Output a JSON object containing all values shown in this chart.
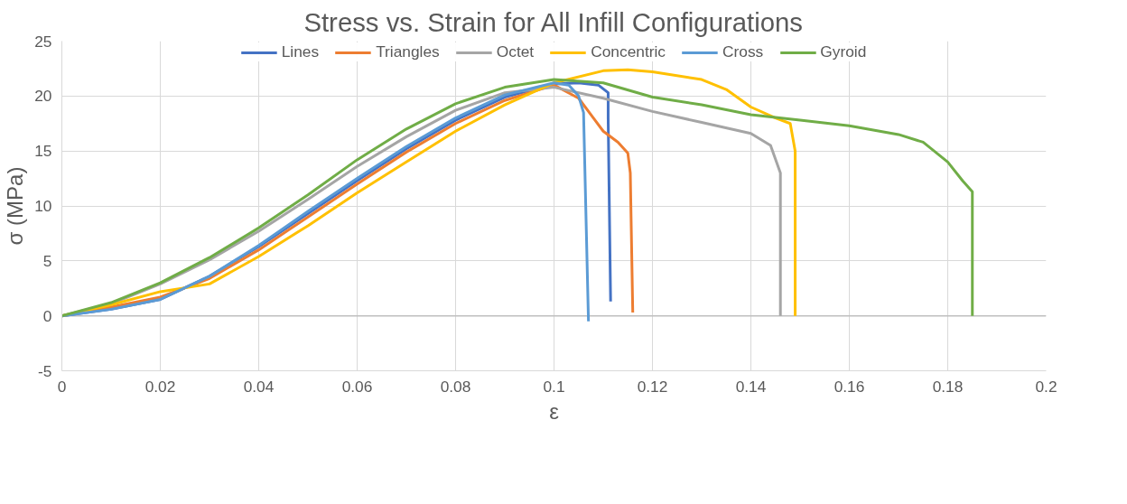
{
  "chart_data": {
    "type": "line",
    "title": "Stress vs. Strain for All Infill Configurations",
    "xlabel": "ε",
    "ylabel": "σ (MPa)",
    "xlim": [
      0,
      0.2
    ],
    "ylim": [
      -5,
      25
    ],
    "xticks": [
      {
        "value": 0,
        "label": "0"
      },
      0.02,
      0.04,
      0.06,
      0.08,
      0.1,
      0.12,
      0.14,
      0.16,
      0.18,
      0.2
    ],
    "yticks": [
      -5,
      0,
      5,
      10,
      15,
      20,
      25
    ],
    "grid": true,
    "legend": "top",
    "marker": "none",
    "line_style": "solid",
    "series": [
      {
        "name": "Lines",
        "color": "#4472c4",
        "x": [
          0,
          0.01,
          0.02,
          0.03,
          0.04,
          0.05,
          0.06,
          0.07,
          0.08,
          0.09,
          0.1,
          0.105,
          0.109,
          0.111,
          0.111,
          0.1115
        ],
        "values": [
          0,
          0.6,
          1.5,
          3.6,
          6.3,
          9.3,
          12.3,
          15.2,
          17.8,
          19.9,
          21.1,
          21.2,
          21.0,
          20.3,
          18.0,
          1.3
        ]
      },
      {
        "name": "Triangles",
        "color": "#ed7d31",
        "x": [
          0,
          0.01,
          0.02,
          0.03,
          0.04,
          0.05,
          0.06,
          0.07,
          0.08,
          0.09,
          0.1,
          0.105,
          0.108,
          0.11,
          0.113,
          0.115,
          0.1155,
          0.116
        ],
        "values": [
          0,
          0.8,
          1.7,
          3.4,
          6.0,
          9.0,
          12.0,
          14.9,
          17.5,
          19.6,
          21.0,
          19.8,
          18.0,
          16.8,
          15.8,
          14.8,
          13,
          0.3
        ]
      },
      {
        "name": "Octet",
        "color": "#a5a5a5",
        "x": [
          0,
          0.01,
          0.02,
          0.03,
          0.04,
          0.05,
          0.06,
          0.07,
          0.08,
          0.09,
          0.1,
          0.11,
          0.12,
          0.13,
          0.14,
          0.144,
          0.146,
          0.146
        ],
        "values": [
          0,
          1.1,
          2.9,
          5.1,
          7.7,
          10.6,
          13.6,
          16.3,
          18.7,
          20.3,
          20.8,
          19.8,
          18.6,
          17.6,
          16.6,
          15.5,
          13,
          0
        ]
      },
      {
        "name": "Concentric",
        "color": "#ffc000",
        "x": [
          0,
          0.01,
          0.02,
          0.03,
          0.04,
          0.05,
          0.06,
          0.07,
          0.08,
          0.09,
          0.1,
          0.11,
          0.115,
          0.12,
          0.13,
          0.135,
          0.14,
          0.145,
          0.148,
          0.149,
          0.149
        ],
        "values": [
          0,
          1.0,
          2.2,
          2.9,
          5.4,
          8.2,
          11.2,
          14.0,
          16.8,
          19.2,
          21.2,
          22.3,
          22.4,
          22.2,
          21.5,
          20.6,
          19.0,
          18.0,
          17.5,
          15,
          0
        ]
      },
      {
        "name": "Cross",
        "color": "#5b9bd5",
        "x": [
          0,
          0.01,
          0.02,
          0.03,
          0.04,
          0.05,
          0.06,
          0.07,
          0.08,
          0.09,
          0.1,
          0.103,
          0.105,
          0.106,
          0.107
        ],
        "values": [
          0,
          0.6,
          1.5,
          3.6,
          6.4,
          9.5,
          12.5,
          15.4,
          18.0,
          20.1,
          21.2,
          21.0,
          20.0,
          18.5,
          -0.5
        ]
      },
      {
        "name": "Gyroid",
        "color": "#70ad47",
        "x": [
          0,
          0.01,
          0.02,
          0.03,
          0.04,
          0.05,
          0.06,
          0.07,
          0.08,
          0.09,
          0.1,
          0.11,
          0.12,
          0.13,
          0.14,
          0.15,
          0.16,
          0.17,
          0.175,
          0.18,
          0.183,
          0.185,
          0.185
        ],
        "values": [
          0,
          1.2,
          3.0,
          5.3,
          8.0,
          11.0,
          14.2,
          17.0,
          19.3,
          20.8,
          21.5,
          21.2,
          19.9,
          19.2,
          18.3,
          17.8,
          17.3,
          16.5,
          15.8,
          14,
          12.3,
          11.3,
          0
        ]
      }
    ]
  }
}
